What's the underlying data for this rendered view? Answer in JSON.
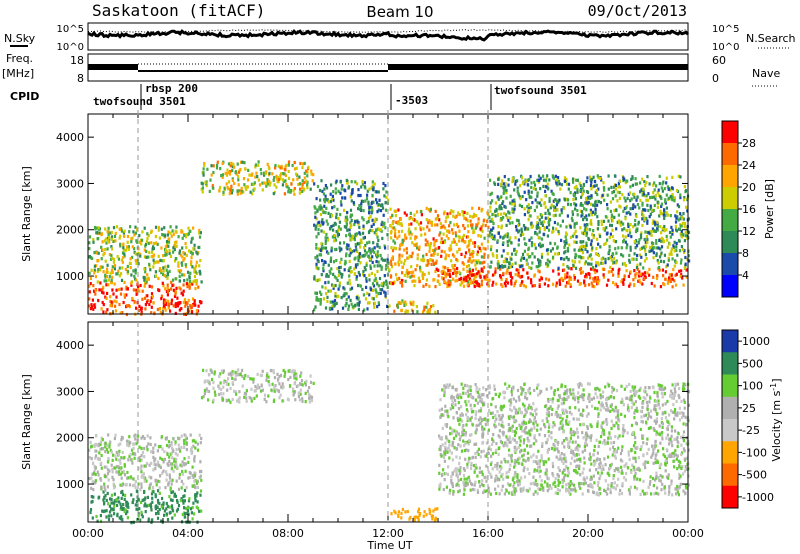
{
  "header": {
    "station": "Saskatoon (fitACF)",
    "beam": "Beam 10",
    "date": "09/Oct/2013"
  },
  "top_panels": {
    "nsky_label": "N.Sky",
    "nsky_ticks": [
      "10^5",
      "10^0"
    ],
    "nsearch_label": "N.Search",
    "nsearch_ticks": [
      "10^5",
      "10^0"
    ],
    "freq_label": "Freq.",
    "freq_unit": "[MHz]",
    "freq_ticks": [
      "18",
      "8"
    ],
    "nave_label": "Nave",
    "nave_ticks": [
      "60",
      "0"
    ],
    "cpid_label": "CPID",
    "cpid_segments": [
      {
        "label": "twofsound 3501",
        "start": 0.0,
        "end": 2.0
      },
      {
        "label": "rbsp 200",
        "start": 2.0,
        "end": 12.0
      },
      {
        "label": "-3503",
        "start": 12.0,
        "end": 16.0
      },
      {
        "label": "twofsound 3501",
        "start": 16.0,
        "end": 24.0
      }
    ]
  },
  "power_colorbar": {
    "label": "Power [dB]",
    "ticks": [
      "28",
      "24",
      "20",
      "16",
      "12",
      "8",
      "4"
    ],
    "colors": [
      "#ff0000",
      "#ff6a00",
      "#ffa500",
      "#cccc00",
      "#44aa44",
      "#2e8b57",
      "#1a4aaa",
      "#0000ff"
    ]
  },
  "velocity_colorbar": {
    "label": "Velocity [m s",
    "label_sup": "-1",
    "label_end": "]",
    "ticks": [
      "1000",
      "500",
      "100",
      "25",
      "-25",
      "-100",
      "-500",
      "-1000"
    ],
    "colors": [
      "#1a3aaa",
      "#2e8b57",
      "#66cc33",
      "#b0b0b0",
      "#c8c8c8",
      "#ffa500",
      "#ff6a00",
      "#ff0000"
    ]
  },
  "chart_data": [
    {
      "type": "heatmap",
      "quantity": "Power",
      "ylabel": "Slant Range [km]",
      "xlabel": "Time UT",
      "xlim": [
        0,
        24
      ],
      "ylim": [
        180,
        4500
      ],
      "x_ticks": [
        "00:00",
        "04:00",
        "08:00",
        "12:00",
        "16:00",
        "20:00",
        "00:00"
      ],
      "y_ticks": [
        1000,
        2000,
        3000,
        4000
      ],
      "colorbar_range": [
        0,
        30
      ],
      "regions": [
        {
          "x": [
            0.0,
            4.5
          ],
          "y": [
            200,
            900
          ],
          "value": 27
        },
        {
          "x": [
            0.0,
            4.5
          ],
          "y": [
            900,
            2100
          ],
          "value": 16
        },
        {
          "x": [
            4.5,
            9.0
          ],
          "y": [
            2800,
            3500
          ],
          "value": 18
        },
        {
          "x": [
            9.0,
            12.0
          ],
          "y": [
            300,
            3100
          ],
          "value": 12
        },
        {
          "x": [
            12.0,
            16.0
          ],
          "y": [
            800,
            2500
          ],
          "value": 22
        },
        {
          "x": [
            12.0,
            14.0
          ],
          "y": [
            250,
            500
          ],
          "value": 20
        },
        {
          "x": [
            14.0,
            24.0
          ],
          "y": [
            800,
            1200
          ],
          "value": 27
        },
        {
          "x": [
            16.0,
            24.0
          ],
          "y": [
            1200,
            3200
          ],
          "value": 13
        }
      ]
    },
    {
      "type": "heatmap",
      "quantity": "Velocity",
      "ylabel": "Slant Range [km]",
      "xlabel": "Time UT",
      "xlim": [
        0,
        24
      ],
      "ylim": [
        180,
        4500
      ],
      "x_ticks": [
        "00:00",
        "04:00",
        "08:00",
        "12:00",
        "16:00",
        "20:00",
        "00:00"
      ],
      "y_ticks": [
        1000,
        2000,
        3000,
        4000
      ],
      "regions": [
        {
          "x": [
            0.0,
            4.5
          ],
          "y": [
            200,
            900
          ],
          "value": 150
        },
        {
          "x": [
            0.0,
            4.5
          ],
          "y": [
            900,
            2100
          ],
          "value": 0
        },
        {
          "x": [
            4.5,
            9.0
          ],
          "y": [
            2800,
            3500
          ],
          "value": 0
        },
        {
          "x": [
            12.0,
            14.0
          ],
          "y": [
            250,
            500
          ],
          "value": -200
        },
        {
          "x": [
            14.0,
            24.0
          ],
          "y": [
            800,
            3200
          ],
          "value": 0
        }
      ]
    }
  ]
}
